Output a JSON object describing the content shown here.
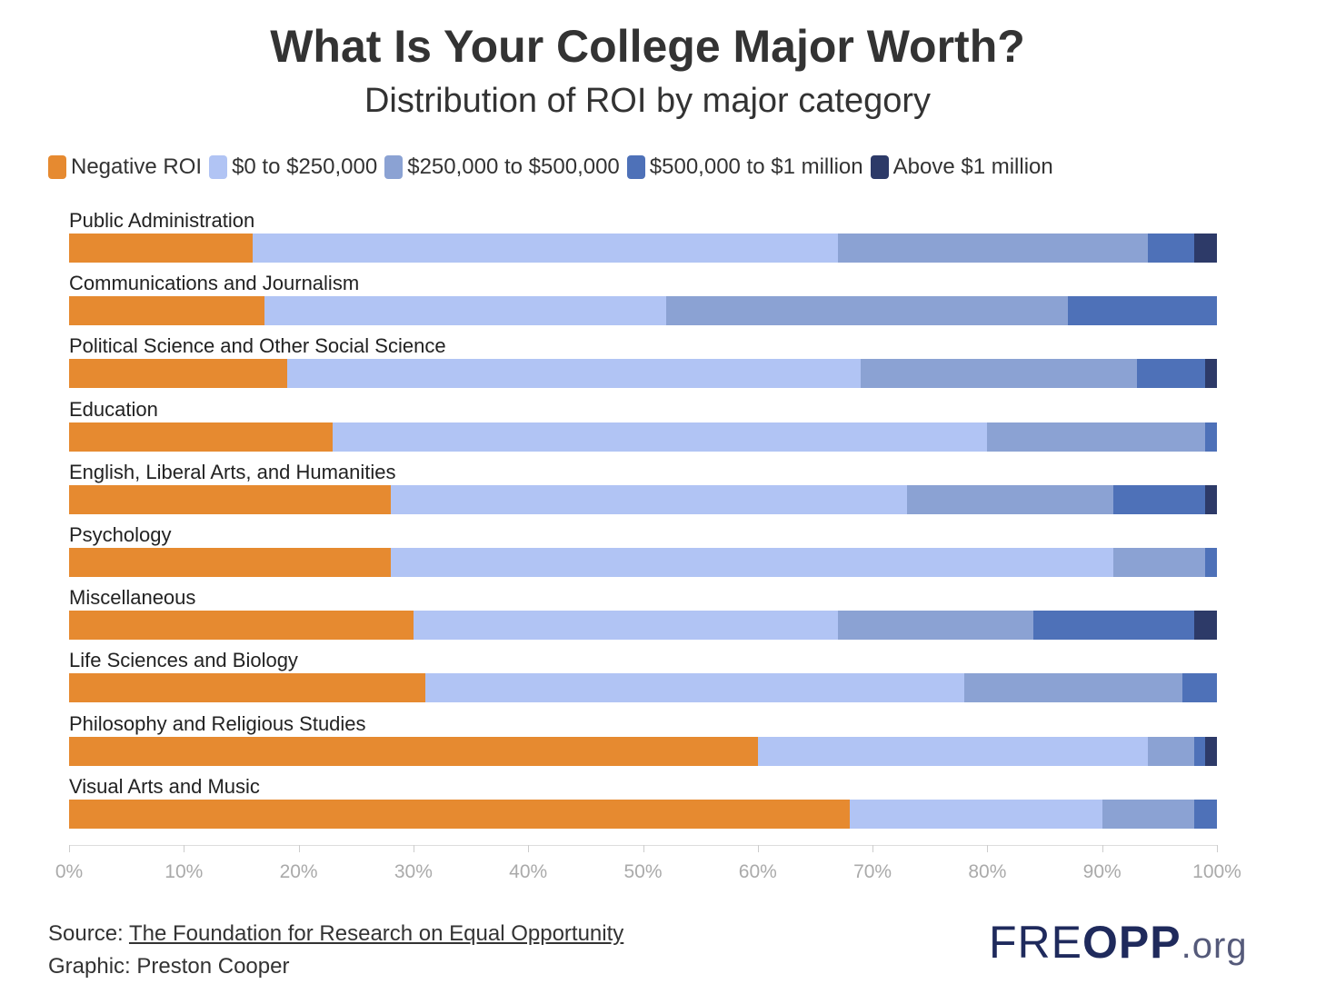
{
  "chart_data": {
    "type": "bar",
    "orientation": "horizontal",
    "stacked": true,
    "title": "What Is Your College Major Worth?",
    "subtitle": "Distribution of ROI by major category",
    "xlabel": "",
    "ylabel": "",
    "xlim": [
      0,
      100
    ],
    "x_ticks": [
      "0%",
      "10%",
      "20%",
      "30%",
      "40%",
      "50%",
      "60%",
      "70%",
      "80%",
      "90%",
      "100%"
    ],
    "legend_position": "top-left",
    "categories": [
      "Public Administration",
      "Communications and Journalism",
      "Political Science and Other Social Science",
      "Education",
      "English, Liberal Arts, and Humanities",
      "Psychology",
      "Miscellaneous",
      "Life Sciences and Biology",
      "Philosophy and Religious Studies",
      "Visual Arts and Music"
    ],
    "series": [
      {
        "name": "Negative ROI",
        "color": "#E68A30",
        "values": [
          16,
          17,
          19,
          23,
          28,
          28,
          30,
          31,
          60,
          68
        ]
      },
      {
        "name": "$0 to $250,000",
        "color": "#B1C4F4",
        "values": [
          51,
          35,
          50,
          57,
          45,
          63,
          37,
          47,
          34,
          22
        ]
      },
      {
        "name": "$250,000 to $500,000",
        "color": "#8BA2D3",
        "values": [
          27,
          35,
          24,
          19,
          18,
          8,
          17,
          19,
          4,
          8
        ]
      },
      {
        "name": "$500,000 to $1 million",
        "color": "#4E71B8",
        "values": [
          4,
          13,
          6,
          1,
          8,
          1,
          14,
          3,
          1,
          2
        ]
      },
      {
        "name": "Above $1 million",
        "color": "#2D3A68",
        "values": [
          2,
          0,
          1,
          0,
          1,
          0,
          2,
          0,
          1,
          0
        ]
      }
    ]
  },
  "footer": {
    "source_label": "Source: ",
    "source_link": "The Foundation for Research on Equal Opportunity",
    "graphic": "Graphic: Preston Cooper"
  },
  "logo": {
    "text": "FREOPP.org"
  }
}
